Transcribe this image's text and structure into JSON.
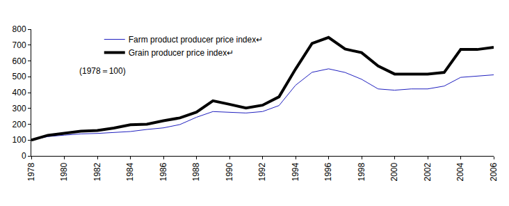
{
  "chart_data": {
    "type": "line",
    "x": [
      1978,
      1979,
      1980,
      1981,
      1982,
      1983,
      1984,
      1985,
      1986,
      1987,
      1988,
      1989,
      1990,
      1991,
      1992,
      1993,
      1994,
      1995,
      1996,
      1997,
      1998,
      1999,
      2000,
      2001,
      2002,
      2003,
      2004,
      2005,
      2006
    ],
    "series": [
      {
        "name": "Farm product producer price index↵",
        "color": "#1f1fbf",
        "line_style": "solid",
        "values": [
          100,
          122,
          131,
          139,
          142,
          148,
          154,
          167,
          177,
          198,
          244,
          280,
          277,
          271,
          280,
          318,
          446,
          528,
          550,
          527,
          484,
          423,
          415,
          423,
          423,
          441,
          496,
          504,
          512
        ]
      },
      {
        "name": "Grain producer price index↵",
        "color": "#000000",
        "line_style": "solid",
        "values": [
          100,
          130,
          143,
          156,
          160,
          176,
          197,
          200,
          222,
          240,
          276,
          348,
          326,
          302,
          320,
          373,
          548,
          710,
          748,
          675,
          652,
          568,
          517,
          517,
          517,
          527,
          672,
          672,
          686
        ]
      }
    ],
    "annotations": [
      "(1978＝100)"
    ],
    "xlim": [
      1978,
      2006
    ],
    "xticks": [
      1978,
      1980,
      1982,
      1984,
      1986,
      1988,
      1990,
      1992,
      1994,
      1996,
      1998,
      2000,
      2002,
      2004,
      2006
    ],
    "ylim": [
      0,
      800
    ],
    "yticks": [
      0,
      100,
      200,
      300,
      400,
      500,
      600,
      700,
      800
    ],
    "grid": false,
    "legend": "top-left"
  }
}
